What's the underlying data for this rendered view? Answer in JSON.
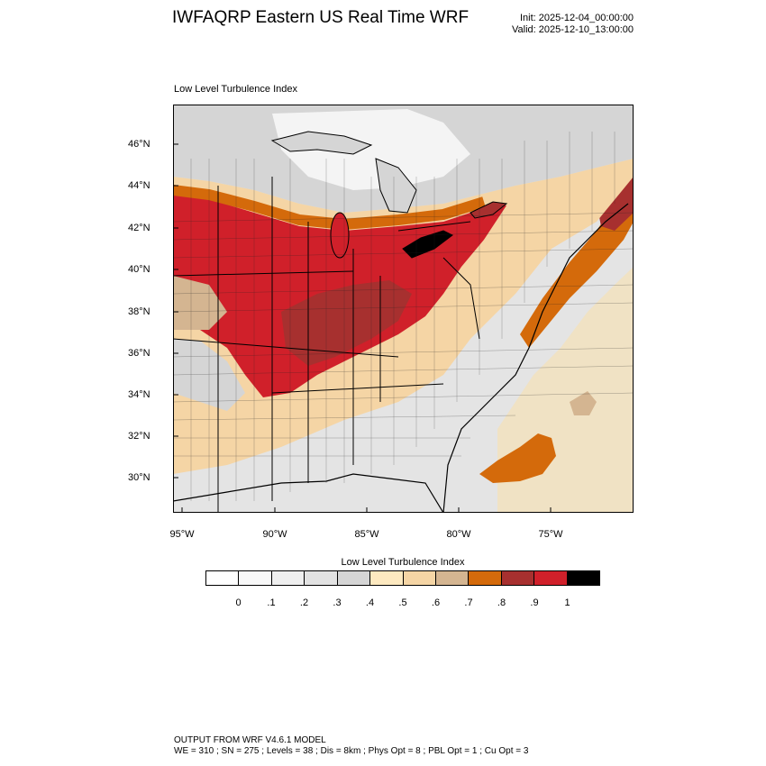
{
  "header": {
    "title": "IWFAQRP Eastern US Real Time WRF",
    "init": "Init: 2025-12-04_00:00:00",
    "valid": "Valid: 2025-12-10_13:00:00"
  },
  "map": {
    "subtitle": "Low Level Turbulence Index",
    "lat_ticks": [
      "46°N",
      "44°N",
      "42°N",
      "40°N",
      "38°N",
      "36°N",
      "34°N",
      "32°N",
      "30°N"
    ],
    "lon_ticks": [
      "95°W",
      "90°W",
      "85°W",
      "80°W",
      "75°W"
    ],
    "ocean_color": "#f7e0b0",
    "water_color": "#ffffff"
  },
  "colorbar": {
    "title": "Low Level Turbulence Index",
    "labels": [
      "0",
      ".1",
      ".2",
      ".3",
      ".4",
      ".5",
      ".6",
      ".7",
      ".8",
      ".9",
      "1"
    ],
    "colors": [
      "#ffffff",
      "#f8f8f8",
      "#efefef",
      "#e2e2e2",
      "#d5d5d5",
      "#fde9c0",
      "#f5d5a5",
      "#d4b591",
      "#d46a0b",
      "#a7302f",
      "#d0202a",
      "#000000"
    ]
  },
  "footer": {
    "line1": "OUTPUT FROM WRF V4.6.1 MODEL",
    "line2": "WE = 310 ; SN = 275 ; Levels = 38 ; Dis = 8km ; Phys Opt = 8 ; PBL Opt = 1 ; Cu Opt = 3"
  }
}
